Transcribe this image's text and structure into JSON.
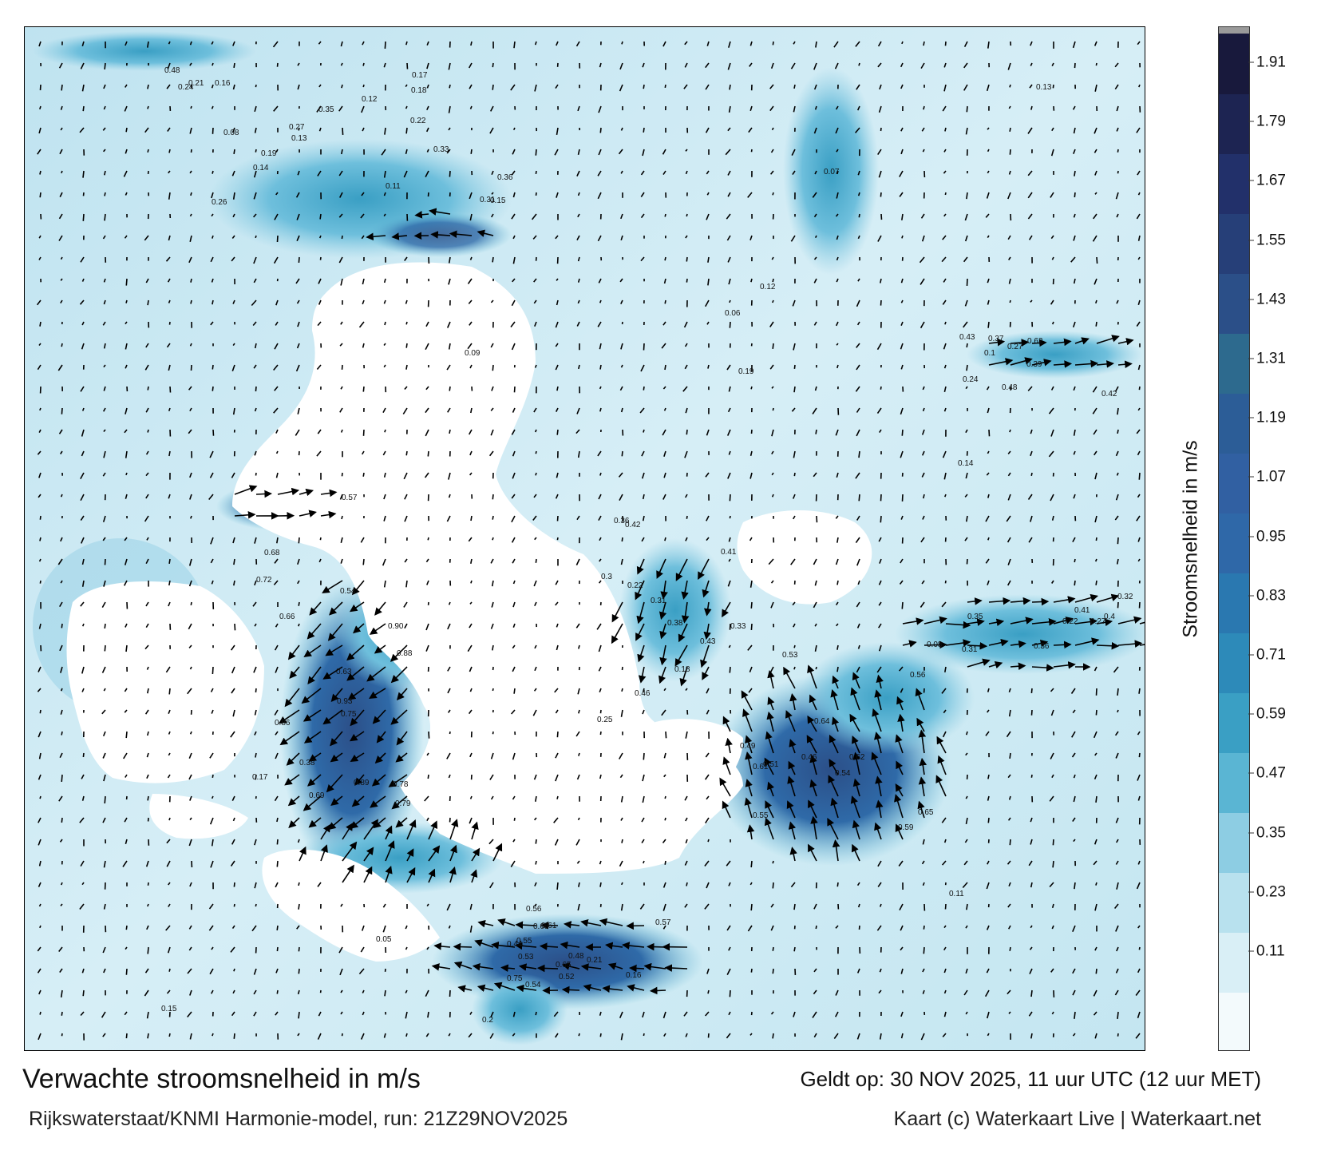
{
  "title": "Verwachte stroomsnelheid in m/s",
  "subtitle": "Rijkswaterstaat/KNMI Harmonie-model, run: 21Z29NOV2025",
  "valid_time": "Geldt op: 30 NOV 2025, 11 uur UTC (12 uur MET)",
  "credit": "Kaart (c) Waterkaart Live | Waterkaart.net",
  "colorbar": {
    "title": "Stroomsnelheid in m/s",
    "ticks": [
      "1.91",
      "1.79",
      "1.67",
      "1.55",
      "1.43",
      "1.31",
      "1.19",
      "1.07",
      "0.95",
      "0.83",
      "0.71",
      "0.59",
      "0.47",
      "0.35",
      "0.23",
      "0.11"
    ],
    "colors": [
      "#f3fafc",
      "#d9eff6",
      "#b8e1ee",
      "#8dcde3",
      "#5ab5d3",
      "#3a9fc4",
      "#2d8ab9",
      "#2a78b0",
      "#2f68a8",
      "#3160a2",
      "#2c5d97",
      "#2d6a8e",
      "#2b4f88",
      "#263f78",
      "#22306a",
      "#1d2452",
      "#18193c"
    ],
    "max_color": "#9a9a9a"
  },
  "map": {
    "land_color": "#ffffff",
    "water_light": "#cfeaf3",
    "water_mid": "#6ebfdc",
    "water_strong": "#2c67a6",
    "velocity_labels": [
      {
        "v": "0.22",
        "c": "ned-top"
      },
      {
        "v": "0.26",
        "c": "ned-top"
      },
      {
        "v": "0.16",
        "c": "ned-top"
      },
      {
        "v": "0.12",
        "c": "ned-top"
      },
      {
        "v": "0.11",
        "c": "ned-top"
      },
      {
        "v": "0.13",
        "c": "ned-top"
      },
      {
        "v": "0.19",
        "c": "ned-top"
      },
      {
        "v": "0.18",
        "c": "ned-top"
      },
      {
        "v": "0.17",
        "c": "ned-top"
      },
      {
        "v": "0.14",
        "c": "ned-top"
      },
      {
        "v": "0.33",
        "c": "ned-top"
      },
      {
        "v": "0.27",
        "c": "ned-top"
      },
      {
        "v": "0.31",
        "c": "ned-top"
      },
      {
        "v": "0.48",
        "c": "ned-top"
      },
      {
        "v": "0.36",
        "c": "ned-top"
      },
      {
        "v": "0.08",
        "c": "ned-top"
      },
      {
        "v": "0.24",
        "c": "ned-top"
      },
      {
        "v": "0.35",
        "c": "ned-top"
      },
      {
        "v": "0.15",
        "c": "ned-top"
      },
      {
        "v": "0.21",
        "c": "ned-top"
      },
      {
        "v": "0.63",
        "c": "west"
      },
      {
        "v": "0.72",
        "c": "west"
      },
      {
        "v": "0.54",
        "c": "west"
      },
      {
        "v": "0.38",
        "c": "west"
      },
      {
        "v": "0.68",
        "c": "west"
      },
      {
        "v": "0.57",
        "c": "west"
      },
      {
        "v": "0.66",
        "c": "west"
      },
      {
        "v": "0.69",
        "c": "west"
      },
      {
        "v": "0.75",
        "c": "west"
      },
      {
        "v": "0.93",
        "c": "west"
      },
      {
        "v": "0.86",
        "c": "west"
      },
      {
        "v": "0.88",
        "c": "west"
      },
      {
        "v": "0.89",
        "c": "west"
      },
      {
        "v": "0.79",
        "c": "west"
      },
      {
        "v": "0.78",
        "c": "west"
      },
      {
        "v": "0.90",
        "c": "west"
      },
      {
        "v": "0.59",
        "c": "east"
      },
      {
        "v": "0.56",
        "c": "east"
      },
      {
        "v": "0.54",
        "c": "east"
      },
      {
        "v": "0.53",
        "c": "east"
      },
      {
        "v": "0.51",
        "c": "east"
      },
      {
        "v": "0.65",
        "c": "east"
      },
      {
        "v": "0.62",
        "c": "east"
      },
      {
        "v": "0.61",
        "c": "east"
      },
      {
        "v": "0.64",
        "c": "east"
      },
      {
        "v": "0.55",
        "c": "east"
      },
      {
        "v": "0.49",
        "c": "east"
      },
      {
        "v": "0.46",
        "c": "east"
      },
      {
        "v": "0.68",
        "c": "south"
      },
      {
        "v": "0.65",
        "c": "south"
      },
      {
        "v": "0.75",
        "c": "south"
      },
      {
        "v": "0.56",
        "c": "south"
      },
      {
        "v": "0.61",
        "c": "south"
      },
      {
        "v": "0.57",
        "c": "south"
      },
      {
        "v": "0.52",
        "c": "south"
      },
      {
        "v": "0.54",
        "c": "south"
      },
      {
        "v": "0.55",
        "c": "south"
      },
      {
        "v": "0.44",
        "c": "south"
      },
      {
        "v": "0.48",
        "c": "south"
      },
      {
        "v": "0.53",
        "c": "south"
      },
      {
        "v": "0.43",
        "c": "mid"
      },
      {
        "v": "0.46",
        "c": "mid"
      },
      {
        "v": "0.42",
        "c": "mid"
      },
      {
        "v": "0.38",
        "c": "mid"
      },
      {
        "v": "0.36",
        "c": "mid"
      },
      {
        "v": "0.41",
        "c": "mid"
      },
      {
        "v": "0.33",
        "c": "mid"
      },
      {
        "v": "0.31",
        "c": "mid"
      },
      {
        "v": "0.3",
        "c": "mid"
      },
      {
        "v": "0.25",
        "c": "mid"
      },
      {
        "v": "0.22",
        "c": "mid"
      },
      {
        "v": "0.18",
        "c": "mid"
      },
      {
        "v": "0.62",
        "c": "ne"
      },
      {
        "v": "0.43",
        "c": "ne"
      },
      {
        "v": "0.48",
        "c": "ne"
      },
      {
        "v": "0.39",
        "c": "ne"
      },
      {
        "v": "0.37",
        "c": "ne"
      },
      {
        "v": "0.42",
        "c": "ne"
      },
      {
        "v": "0.27",
        "c": "ne"
      },
      {
        "v": "0.24",
        "c": "ne"
      },
      {
        "v": "0.41",
        "c": "se"
      },
      {
        "v": "0.36",
        "c": "se"
      },
      {
        "v": "0.32",
        "c": "se"
      },
      {
        "v": "0.4",
        "c": "se"
      },
      {
        "v": "0.35",
        "c": "se"
      },
      {
        "v": "0.31",
        "c": "se"
      },
      {
        "v": "0.27",
        "c": "se"
      },
      {
        "v": "0.22",
        "c": "se"
      },
      {
        "v": "0.13",
        "c": "bg"
      },
      {
        "v": "0.11",
        "c": "bg"
      },
      {
        "v": "0.09",
        "c": "bg"
      },
      {
        "v": "0.07",
        "c": "bg"
      },
      {
        "v": "0.05",
        "c": "bg"
      },
      {
        "v": "0.12",
        "c": "bg"
      },
      {
        "v": "0.14",
        "c": "bg"
      },
      {
        "v": "0.16",
        "c": "bg"
      },
      {
        "v": "0.08",
        "c": "bg"
      },
      {
        "v": "0.06",
        "c": "bg"
      },
      {
        "v": "0.1",
        "c": "bg"
      },
      {
        "v": "0.17",
        "c": "bg"
      },
      {
        "v": "0.2",
        "c": "bg"
      },
      {
        "v": "0.19",
        "c": "bg"
      },
      {
        "v": "0.15",
        "c": "bg"
      },
      {
        "v": "0.21",
        "c": "bg"
      }
    ]
  }
}
